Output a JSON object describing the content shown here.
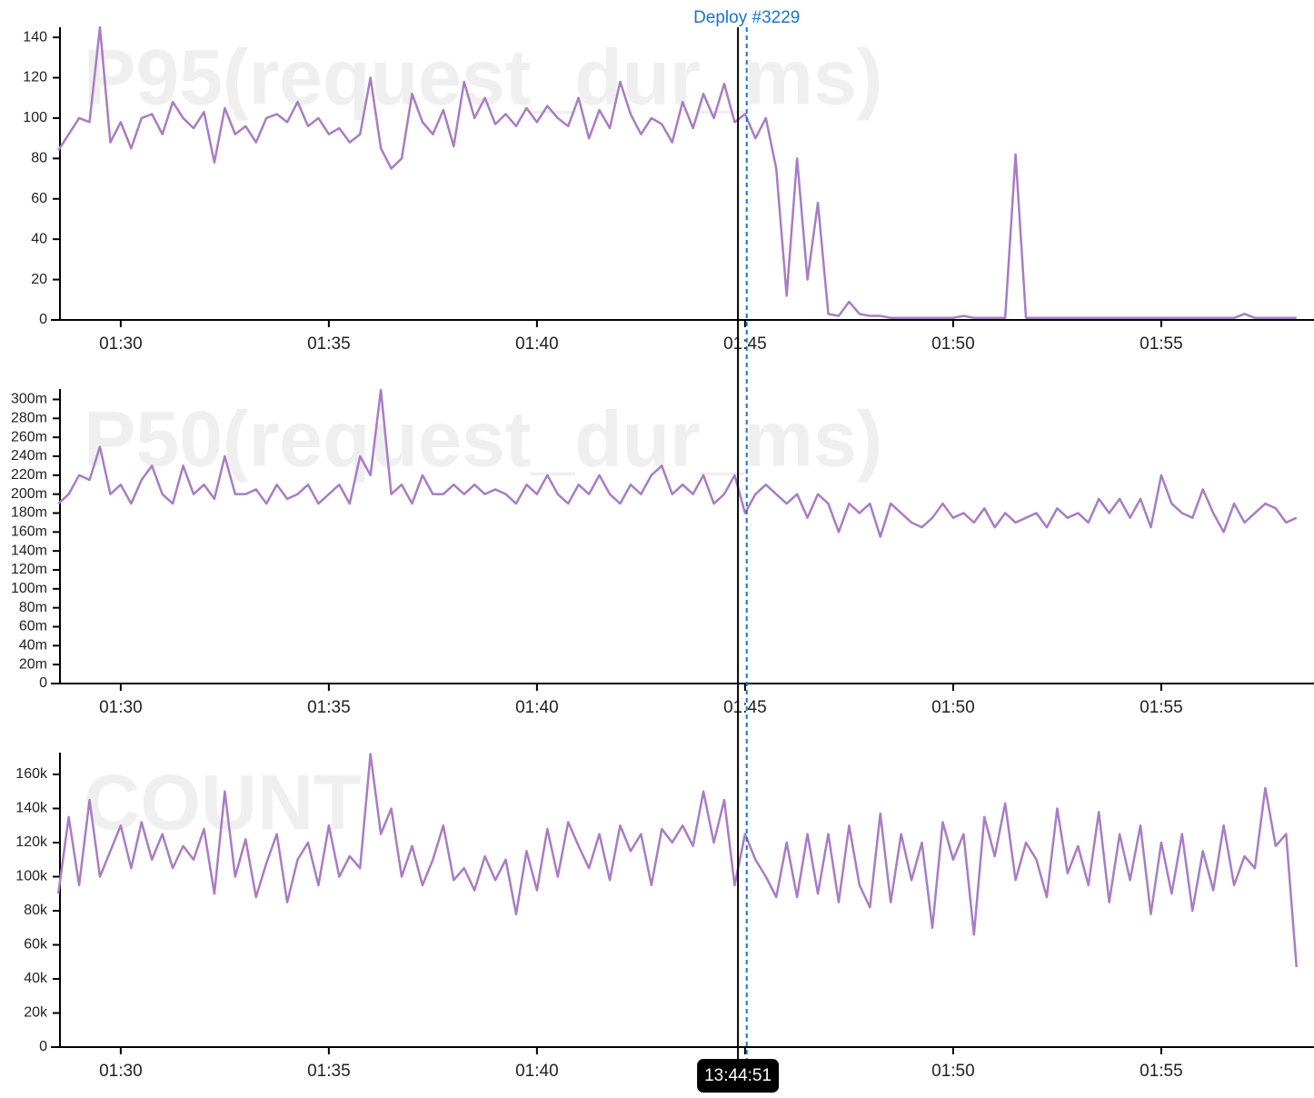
{
  "chart_data": [
    {
      "type": "line",
      "title": "P95(request_dur_ms)",
      "color": "#a97cc4",
      "x": [
        88.5,
        88.75,
        89,
        89.25,
        89.5,
        89.75,
        90,
        90.25,
        90.5,
        90.75,
        91,
        91.25,
        91.5,
        91.75,
        92,
        92.25,
        92.5,
        92.75,
        93,
        93.25,
        93.5,
        93.75,
        94,
        94.25,
        94.5,
        94.75,
        95,
        95.25,
        95.5,
        95.75,
        96,
        96.25,
        96.5,
        96.75,
        97,
        97.25,
        97.5,
        97.75,
        98,
        98.25,
        98.5,
        98.75,
        99,
        99.25,
        99.5,
        99.75,
        100,
        100.25,
        100.5,
        100.75,
        101,
        101.25,
        101.5,
        101.75,
        102,
        102.25,
        102.5,
        102.75,
        103,
        103.25,
        103.5,
        103.75,
        104,
        104.25,
        104.5,
        104.75,
        105,
        105.25,
        105.5,
        105.75,
        106,
        106.25,
        106.5,
        106.75,
        107,
        107.25,
        107.5,
        107.75,
        108,
        108.25,
        108.5,
        108.75,
        109,
        109.25,
        109.5,
        109.75,
        110,
        110.25,
        110.5,
        110.75,
        111,
        111.25,
        111.5,
        111.75,
        112,
        112.25,
        112.5,
        112.75,
        113,
        113.25,
        113.5,
        113.75,
        114,
        114.25,
        114.5,
        114.75,
        115,
        115.25,
        115.5,
        115.75,
        116,
        116.25,
        116.5,
        116.75,
        117,
        117.25,
        117.5,
        117.75,
        118,
        118.25
      ],
      "values": [
        84,
        92,
        100,
        98,
        145,
        88,
        98,
        85,
        100,
        102,
        92,
        108,
        100,
        95,
        103,
        78,
        105,
        92,
        96,
        88,
        100,
        102,
        98,
        108,
        96,
        100,
        92,
        95,
        88,
        92,
        120,
        85,
        75,
        80,
        112,
        98,
        92,
        104,
        86,
        118,
        100,
        110,
        97,
        102,
        96,
        105,
        98,
        106,
        100,
        96,
        110,
        90,
        104,
        95,
        118,
        102,
        92,
        100,
        97,
        88,
        108,
        95,
        112,
        100,
        117,
        98,
        102,
        90,
        100,
        75,
        12,
        80,
        20,
        58,
        3,
        2,
        9,
        3,
        2,
        2,
        1,
        1,
        1,
        1,
        1,
        1,
        1,
        2,
        1,
        1,
        1,
        1,
        82,
        1,
        1,
        1,
        1,
        1,
        1,
        1,
        1,
        1,
        1,
        1,
        1,
        1,
        1,
        1,
        1,
        1,
        1,
        1,
        1,
        1,
        3,
        1,
        1,
        1,
        1,
        1
      ],
      "xlim": [
        88.54,
        118.67
      ],
      "ylim": [
        0,
        145
      ],
      "xticks": [
        {
          "value": 90,
          "label": "01:30"
        },
        {
          "value": 95,
          "label": "01:35"
        },
        {
          "value": 100,
          "label": "01:40"
        },
        {
          "value": 105,
          "label": "01:45"
        },
        {
          "value": 110,
          "label": "01:50"
        },
        {
          "value": 115,
          "label": "01:55"
        }
      ],
      "yticks": [
        0,
        20,
        40,
        60,
        80,
        100,
        120,
        140
      ]
    },
    {
      "type": "line",
      "title": "P50(request_dur_ms)",
      "color": "#a97cc4",
      "x": [
        88.5,
        88.75,
        89,
        89.25,
        89.5,
        89.75,
        90,
        90.25,
        90.5,
        90.75,
        91,
        91.25,
        91.5,
        91.75,
        92,
        92.25,
        92.5,
        92.75,
        93,
        93.25,
        93.5,
        93.75,
        94,
        94.25,
        94.5,
        94.75,
        95,
        95.25,
        95.5,
        95.75,
        96,
        96.25,
        96.5,
        96.75,
        97,
        97.25,
        97.5,
        97.75,
        98,
        98.25,
        98.5,
        98.75,
        99,
        99.25,
        99.5,
        99.75,
        100,
        100.25,
        100.5,
        100.75,
        101,
        101.25,
        101.5,
        101.75,
        102,
        102.25,
        102.5,
        102.75,
        103,
        103.25,
        103.5,
        103.75,
        104,
        104.25,
        104.5,
        104.75,
        105,
        105.25,
        105.5,
        105.75,
        106,
        106.25,
        106.5,
        106.75,
        107,
        107.25,
        107.5,
        107.75,
        108,
        108.25,
        108.5,
        108.75,
        109,
        109.25,
        109.5,
        109.75,
        110,
        110.25,
        110.5,
        110.75,
        111,
        111.25,
        111.5,
        111.75,
        112,
        112.25,
        112.5,
        112.75,
        113,
        113.25,
        113.5,
        113.75,
        114,
        114.25,
        114.5,
        114.75,
        115,
        115.25,
        115.5,
        115.75,
        116,
        116.25,
        116.5,
        116.75,
        117,
        117.25,
        117.5,
        117.75,
        118,
        118.25
      ],
      "values": [
        0.19,
        0.2,
        0.22,
        0.215,
        0.25,
        0.2,
        0.21,
        0.19,
        0.215,
        0.23,
        0.2,
        0.19,
        0.23,
        0.2,
        0.21,
        0.195,
        0.24,
        0.2,
        0.2,
        0.205,
        0.19,
        0.21,
        0.195,
        0.2,
        0.21,
        0.19,
        0.2,
        0.21,
        0.19,
        0.24,
        0.22,
        0.31,
        0.2,
        0.21,
        0.19,
        0.22,
        0.2,
        0.2,
        0.21,
        0.2,
        0.21,
        0.2,
        0.205,
        0.2,
        0.19,
        0.21,
        0.2,
        0.22,
        0.2,
        0.19,
        0.21,
        0.2,
        0.22,
        0.2,
        0.19,
        0.21,
        0.2,
        0.22,
        0.23,
        0.2,
        0.21,
        0.2,
        0.22,
        0.19,
        0.2,
        0.22,
        0.18,
        0.2,
        0.21,
        0.2,
        0.19,
        0.2,
        0.175,
        0.2,
        0.19,
        0.16,
        0.19,
        0.18,
        0.19,
        0.155,
        0.19,
        0.18,
        0.17,
        0.165,
        0.175,
        0.19,
        0.175,
        0.18,
        0.17,
        0.185,
        0.165,
        0.18,
        0.17,
        0.175,
        0.18,
        0.165,
        0.185,
        0.175,
        0.18,
        0.17,
        0.195,
        0.18,
        0.195,
        0.175,
        0.195,
        0.165,
        0.22,
        0.19,
        0.18,
        0.175,
        0.205,
        0.18,
        0.16,
        0.19,
        0.17,
        0.18,
        0.19,
        0.185,
        0.17,
        0.175
      ],
      "xlim": [
        88.54,
        118.67
      ],
      "ylim": [
        0,
        0.311
      ],
      "xticks": [
        {
          "value": 90,
          "label": "01:30"
        },
        {
          "value": 95,
          "label": "01:35"
        },
        {
          "value": 100,
          "label": "01:40"
        },
        {
          "value": 105,
          "label": "01:45"
        },
        {
          "value": 110,
          "label": "01:50"
        },
        {
          "value": 115,
          "label": "01:55"
        }
      ],
      "yticks": [
        0,
        {
          "value": 0.02,
          "label": "20m"
        },
        {
          "value": 0.04,
          "label": "40m"
        },
        {
          "value": 0.06,
          "label": "60m"
        },
        {
          "value": 0.08,
          "label": "80m"
        },
        {
          "value": 0.1,
          "label": "100m"
        },
        {
          "value": 0.12,
          "label": "120m"
        },
        {
          "value": 0.14,
          "label": "140m"
        },
        {
          "value": 0.16,
          "label": "160m"
        },
        {
          "value": 0.18,
          "label": "180m"
        },
        {
          "value": 0.2,
          "label": "200m"
        },
        {
          "value": 0.22,
          "label": "220m"
        },
        {
          "value": 0.24,
          "label": "240m"
        },
        {
          "value": 0.26,
          "label": "260m"
        },
        {
          "value": 0.28,
          "label": "280m"
        },
        {
          "value": 0.3,
          "label": "300m"
        }
      ]
    },
    {
      "type": "line",
      "title": "COUNT",
      "color": "#a97cc4",
      "x": [
        88.5,
        88.75,
        89,
        89.25,
        89.5,
        89.75,
        90,
        90.25,
        90.5,
        90.75,
        91,
        91.25,
        91.5,
        91.75,
        92,
        92.25,
        92.5,
        92.75,
        93,
        93.25,
        93.5,
        93.75,
        94,
        94.25,
        94.5,
        94.75,
        95,
        95.25,
        95.5,
        95.75,
        96,
        96.25,
        96.5,
        96.75,
        97,
        97.25,
        97.5,
        97.75,
        98,
        98.25,
        98.5,
        98.75,
        99,
        99.25,
        99.5,
        99.75,
        100,
        100.25,
        100.5,
        100.75,
        101,
        101.25,
        101.5,
        101.75,
        102,
        102.25,
        102.5,
        102.75,
        103,
        103.25,
        103.5,
        103.75,
        104,
        104.25,
        104.5,
        104.75,
        105,
        105.25,
        105.5,
        105.75,
        106,
        106.25,
        106.5,
        106.75,
        107,
        107.25,
        107.5,
        107.75,
        108,
        108.25,
        108.5,
        108.75,
        109,
        109.25,
        109.5,
        109.75,
        110,
        110.25,
        110.5,
        110.75,
        111,
        111.25,
        111.5,
        111.75,
        112,
        112.25,
        112.5,
        112.75,
        113,
        113.25,
        113.5,
        113.75,
        114,
        114.25,
        114.5,
        114.75,
        115,
        115.25,
        115.5,
        115.75,
        116,
        116.25,
        116.5,
        116.75,
        117,
        117.25,
        117.5,
        117.75,
        118,
        118.25
      ],
      "values": [
        90000,
        135000,
        95000,
        145000,
        100000,
        115000,
        130000,
        105000,
        132000,
        110000,
        125000,
        105000,
        118000,
        110000,
        128000,
        90000,
        150000,
        100000,
        122000,
        88000,
        108000,
        125000,
        85000,
        110000,
        120000,
        95000,
        130000,
        100000,
        112000,
        105000,
        172000,
        125000,
        140000,
        100000,
        118000,
        95000,
        110000,
        130000,
        98000,
        105000,
        92000,
        112000,
        98000,
        110000,
        78000,
        115000,
        92000,
        128000,
        100000,
        132000,
        118000,
        105000,
        125000,
        98000,
        130000,
        115000,
        125000,
        95000,
        128000,
        120000,
        130000,
        118000,
        150000,
        120000,
        145000,
        95000,
        125000,
        110000,
        100000,
        88000,
        120000,
        88000,
        125000,
        90000,
        125000,
        85000,
        130000,
        95000,
        82000,
        137000,
        85000,
        125000,
        98000,
        120000,
        70000,
        132000,
        110000,
        125000,
        66000,
        135000,
        112000,
        143000,
        98000,
        120000,
        110000,
        88000,
        140000,
        102000,
        118000,
        95000,
        138000,
        85000,
        125000,
        98000,
        130000,
        78000,
        120000,
        90000,
        125000,
        80000,
        115000,
        92000,
        130000,
        95000,
        112000,
        105000,
        152000,
        118000,
        125000,
        47000
      ],
      "xlim": [
        88.54,
        118.67
      ],
      "ylim": [
        0,
        172800
      ],
      "xticks": [
        {
          "value": 90,
          "label": "01:30"
        },
        {
          "value": 95,
          "label": "01:35"
        },
        {
          "value": 100,
          "label": "01:40"
        },
        {
          "value": 105,
          "label": "01:45"
        },
        {
          "value": 110,
          "label": "01:50"
        },
        {
          "value": 115,
          "label": "01:55"
        }
      ],
      "yticks": [
        0,
        {
          "value": 20000,
          "label": "20k"
        },
        {
          "value": 40000,
          "label": "40k"
        },
        {
          "value": 60000,
          "label": "60k"
        },
        {
          "value": 80000,
          "label": "80k"
        },
        {
          "value": 100000,
          "label": "100k"
        },
        {
          "value": 120000,
          "label": "120k"
        },
        {
          "value": 140000,
          "label": "140k"
        },
        {
          "value": 160000,
          "label": "160k"
        }
      ]
    }
  ],
  "markers": {
    "deploy": {
      "label": "Deploy #3229",
      "x": 105.04
    },
    "cursor": {
      "label": "13:44:51",
      "x": 104.83
    }
  }
}
